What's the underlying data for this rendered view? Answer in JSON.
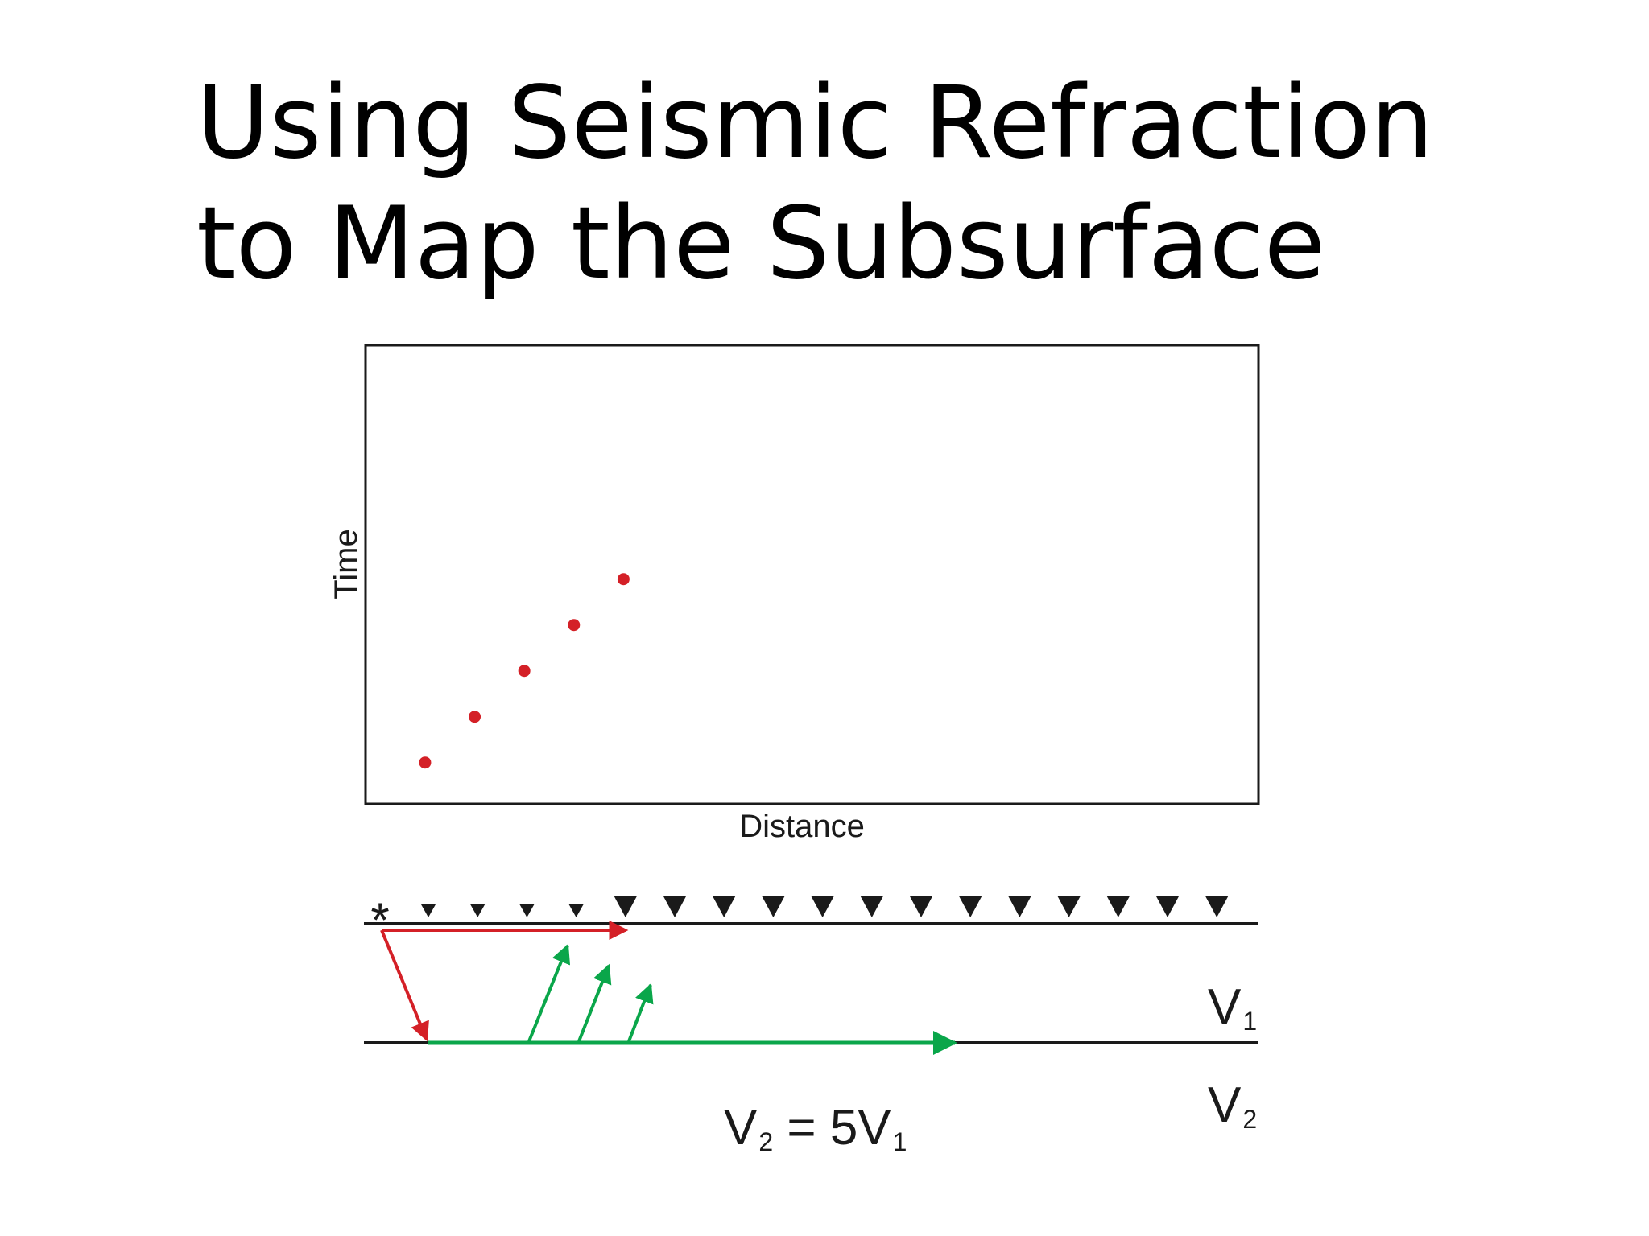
{
  "slide": {
    "title_line1": "Using Seismic Refraction",
    "title_line2": "to Map the Subsurface"
  },
  "chart_data": {
    "type": "scatter",
    "xlabel": "Distance",
    "ylabel": "Time",
    "grid": false,
    "xlim": [
      0,
      18
    ],
    "ylim": [
      0,
      10
    ],
    "series": [
      {
        "color": "#d42027",
        "points": [
          {
            "x": 1,
            "y": 1
          },
          {
            "x": 2,
            "y": 2
          },
          {
            "x": 3,
            "y": 3
          },
          {
            "x": 4,
            "y": 4
          },
          {
            "x": 5,
            "y": 5
          }
        ]
      }
    ]
  },
  "diagram": {
    "source_symbol": "*",
    "receiver_count": 17,
    "receivers_active": 4,
    "direct_ray_color": "#d42027",
    "refracted_ray_color": "#0aa64a",
    "layer1_label": {
      "main": "V",
      "sub": "1"
    },
    "layer2_label": {
      "main": "V",
      "sub": "2"
    },
    "relation": {
      "lhs_main": "V",
      "lhs_sub": "2",
      "op": " = 5",
      "rhs_main": "V",
      "rhs_sub": "1"
    }
  }
}
